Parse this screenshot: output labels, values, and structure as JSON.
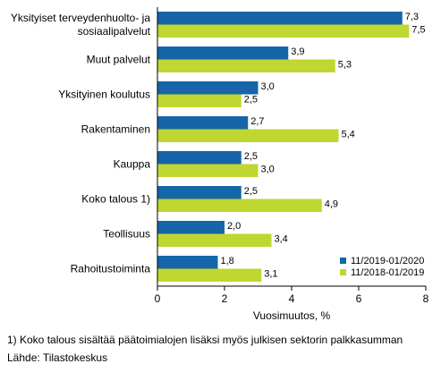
{
  "chart_data": {
    "type": "bar",
    "orientation": "horizontal",
    "categories": [
      [
        "Yksityiset terveydenhuolto- ja",
        "sosiaalipalvelut"
      ],
      [
        "Muut palvelut"
      ],
      [
        "Yksityinen koulutus"
      ],
      [
        "Rakentaminen"
      ],
      [
        "Kauppa"
      ],
      [
        "Koko talous 1)"
      ],
      [
        "Teollisuus"
      ],
      [
        "Rahoitustoiminta"
      ]
    ],
    "series": [
      {
        "name": "11/2019-01/2020",
        "color": "#1565a8",
        "values": [
          7.3,
          3.9,
          3.0,
          2.7,
          2.5,
          2.5,
          2.0,
          1.8
        ],
        "labels": [
          "7,3",
          "3,9",
          "3,0",
          "2,7",
          "2,5",
          "2,5",
          "2,0",
          "1,8"
        ]
      },
      {
        "name": "11/2018-01/2019",
        "color": "#bfd730",
        "values": [
          7.5,
          5.3,
          2.5,
          5.4,
          3.0,
          4.9,
          3.4,
          3.1
        ],
        "labels": [
          "7,5",
          "5,3",
          "2,5",
          "5,4",
          "3,0",
          "4,9",
          "3,4",
          "3,1"
        ]
      }
    ],
    "xlabel": "Vuosimuutos, %",
    "xlim": [
      0,
      8
    ],
    "xticks": [
      0,
      2,
      4,
      6,
      8
    ],
    "grid": false,
    "legend_position": "bottom-right"
  },
  "footnote": "1) Koko talous sisältää päätoimialojen lisäksi myös julkisen sektorin palkkasumman",
  "source": "Lähde: Tilastokeskus"
}
